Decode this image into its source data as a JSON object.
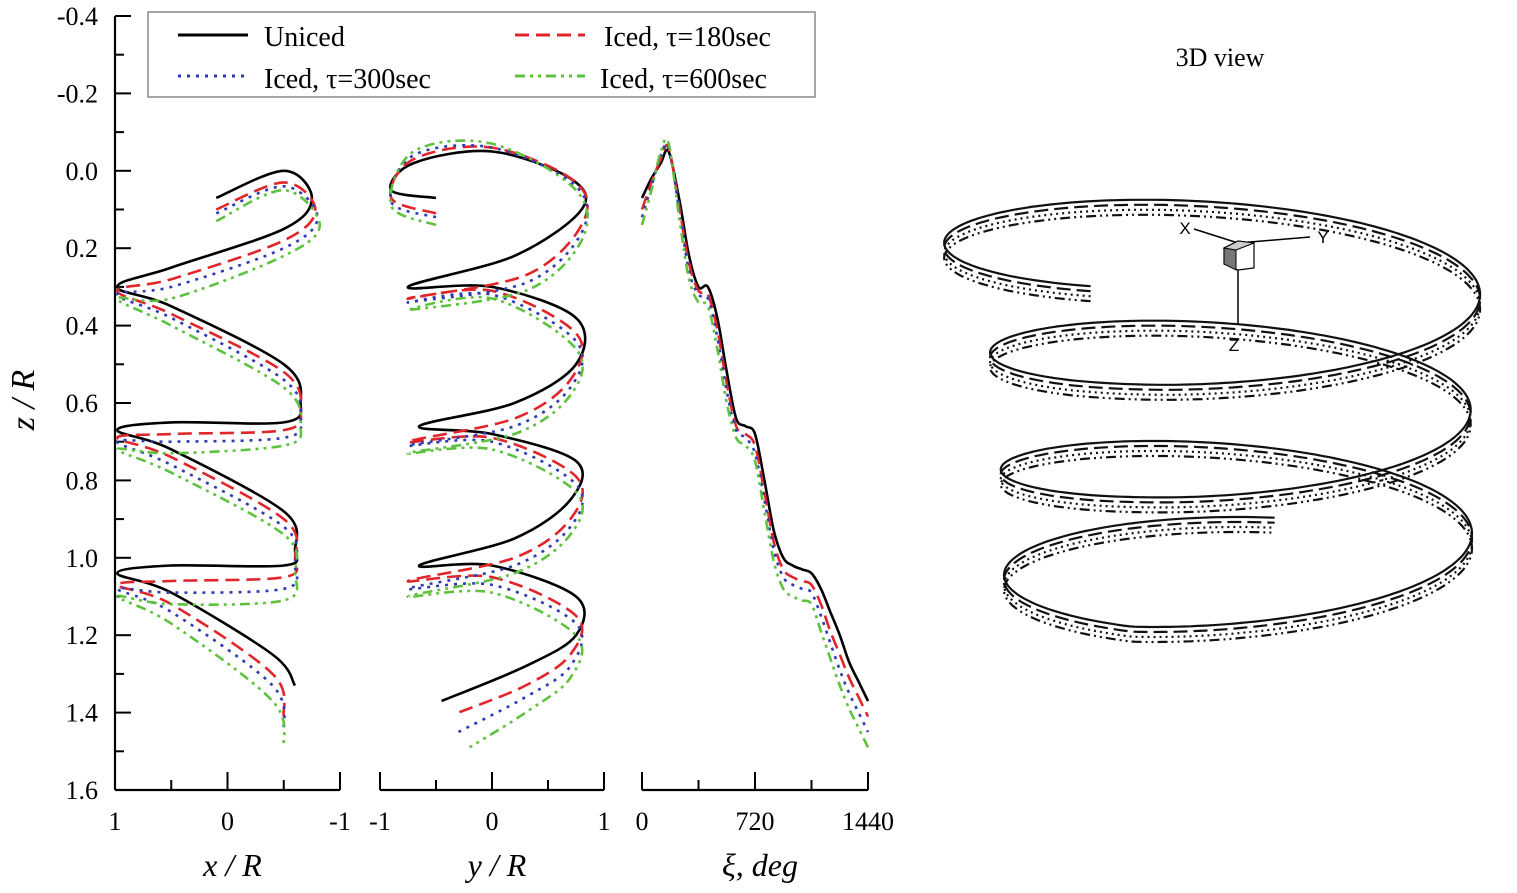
{
  "chart_data": [
    {
      "type": "line",
      "panel": "x-panel",
      "title": "",
      "ylabel": "z / R",
      "xlabel": "x / R",
      "xlim": [
        1,
        -1
      ],
      "ylim": [
        -0.4,
        1.6
      ],
      "yticks": [
        "-0.4",
        "-0.2",
        "0.0",
        "0.2",
        "0.4",
        "0.6",
        "0.8",
        "1.0",
        "1.2",
        "1.4",
        "1.6"
      ],
      "xticks": [
        "1",
        "0",
        "-1"
      ],
      "series": [
        {
          "name": "Uniced",
          "x": [
            0.1,
            -0.5,
            -0.75,
            -0.5,
            0.5,
            0.98,
            0.5,
            -0.5,
            -0.65,
            -0.5,
            0.5,
            0.98,
            0.5,
            -0.5,
            -0.6,
            -0.5,
            0.5,
            0.98,
            0.5,
            -0.4,
            -0.6
          ],
          "z": [
            0.07,
            0.0,
            0.07,
            0.15,
            0.25,
            0.3,
            0.35,
            0.5,
            0.6,
            0.65,
            0.65,
            0.67,
            0.72,
            0.88,
            0.98,
            1.02,
            1.02,
            1.04,
            1.09,
            1.25,
            1.33
          ]
        },
        {
          "name": "Iced, τ=180sec",
          "x": [
            0.1,
            -0.5,
            -0.78,
            -0.5,
            0.5,
            0.98,
            0.5,
            -0.5,
            -0.65,
            -0.5,
            0.5,
            0.98,
            0.5,
            -0.5,
            -0.6,
            -0.5,
            0.5,
            0.98,
            0.5,
            -0.4,
            -0.5
          ],
          "z": [
            0.1,
            0.03,
            0.1,
            0.18,
            0.28,
            0.31,
            0.37,
            0.52,
            0.62,
            0.67,
            0.68,
            0.69,
            0.74,
            0.9,
            1.0,
            1.05,
            1.06,
            1.07,
            1.12,
            1.3,
            1.41
          ]
        },
        {
          "name": "Iced, τ=300sec",
          "x": [
            0.1,
            -0.5,
            -0.8,
            -0.5,
            0.5,
            0.98,
            0.5,
            -0.5,
            -0.65,
            -0.5,
            0.5,
            0.98,
            0.5,
            -0.5,
            -0.6,
            -0.5,
            0.5,
            0.98,
            0.5,
            -0.4,
            -0.5
          ],
          "z": [
            0.11,
            0.04,
            0.12,
            0.2,
            0.3,
            0.32,
            0.38,
            0.54,
            0.64,
            0.69,
            0.7,
            0.7,
            0.76,
            0.92,
            1.02,
            1.08,
            1.09,
            1.08,
            1.14,
            1.33,
            1.45
          ]
        },
        {
          "name": "Iced, τ=600sec",
          "x": [
            0.1,
            -0.5,
            -0.82,
            -0.5,
            0.5,
            0.98,
            0.5,
            -0.5,
            -0.65,
            -0.5,
            0.5,
            0.98,
            0.5,
            -0.5,
            -0.6,
            -0.5,
            0.5,
            0.98,
            0.5,
            -0.4,
            -0.5
          ],
          "z": [
            0.13,
            0.05,
            0.14,
            0.22,
            0.33,
            0.33,
            0.4,
            0.56,
            0.66,
            0.71,
            0.73,
            0.72,
            0.78,
            0.94,
            1.04,
            1.11,
            1.12,
            1.1,
            1.17,
            1.37,
            1.49
          ]
        }
      ]
    },
    {
      "type": "line",
      "panel": "y-panel",
      "xlabel": "y / R",
      "xlim": [
        -1,
        1
      ],
      "ylim": [
        -0.4,
        1.6
      ],
      "xticks": [
        "-1",
        "0",
        "1"
      ],
      "series": [
        {
          "name": "Uniced",
          "x": [
            -0.5,
            -0.9,
            -0.7,
            0.0,
            0.7,
            0.8,
            0.2,
            -0.75,
            0.0,
            0.75,
            0.75,
            0.2,
            -0.65,
            0.0,
            0.75,
            0.7,
            0.2,
            -0.65,
            0.0,
            0.75,
            0.75,
            0.3,
            -0.45
          ],
          "z": [
            0.07,
            0.05,
            -0.02,
            -0.05,
            0.02,
            0.1,
            0.22,
            0.3,
            0.3,
            0.38,
            0.5,
            0.6,
            0.66,
            0.68,
            0.75,
            0.85,
            0.95,
            1.02,
            1.02,
            1.1,
            1.2,
            1.28,
            1.37
          ]
        },
        {
          "name": "Iced, τ=180sec",
          "x": [
            -0.5,
            -0.9,
            -0.7,
            0.0,
            0.75,
            0.8,
            0.3,
            -0.75,
            0.0,
            0.75,
            0.7,
            0.2,
            -0.75,
            0.0,
            0.75,
            0.7,
            0.2,
            -0.75,
            0.0,
            0.75,
            0.7,
            0.3,
            -0.3
          ],
          "z": [
            0.11,
            0.07,
            -0.03,
            -0.06,
            0.03,
            0.14,
            0.27,
            0.33,
            0.31,
            0.42,
            0.54,
            0.64,
            0.7,
            0.69,
            0.79,
            0.9,
            1.0,
            1.06,
            1.05,
            1.15,
            1.25,
            1.33,
            1.4
          ]
        },
        {
          "name": "Iced, τ=300sec",
          "x": [
            -0.5,
            -0.9,
            -0.7,
            0.0,
            0.75,
            0.8,
            0.3,
            -0.75,
            0.0,
            0.75,
            0.7,
            0.2,
            -0.75,
            0.0,
            0.75,
            0.7,
            0.2,
            -0.75,
            0.0,
            0.75,
            0.7,
            0.3,
            -0.3
          ],
          "z": [
            0.12,
            0.08,
            -0.04,
            -0.06,
            0.04,
            0.16,
            0.29,
            0.34,
            0.32,
            0.44,
            0.56,
            0.66,
            0.71,
            0.7,
            0.81,
            0.92,
            1.02,
            1.08,
            1.07,
            1.17,
            1.28,
            1.36,
            1.45
          ]
        },
        {
          "name": "Iced, τ=600sec",
          "x": [
            -0.5,
            -0.9,
            -0.7,
            0.0,
            0.75,
            0.8,
            0.3,
            -0.75,
            0.0,
            0.75,
            0.7,
            0.2,
            -0.75,
            0.0,
            0.75,
            0.7,
            0.2,
            -0.75,
            0.0,
            0.75,
            0.7,
            0.3,
            -0.2
          ],
          "z": [
            0.14,
            0.09,
            -0.05,
            -0.07,
            0.05,
            0.18,
            0.31,
            0.36,
            0.33,
            0.46,
            0.58,
            0.68,
            0.73,
            0.72,
            0.83,
            0.94,
            1.04,
            1.1,
            1.09,
            1.2,
            1.31,
            1.4,
            1.49
          ]
        }
      ]
    },
    {
      "type": "line",
      "panel": "xi-panel",
      "xlabel": "ξ, deg",
      "xlim": [
        0,
        1440
      ],
      "ylim": [
        -0.4,
        1.6
      ],
      "xticks": [
        "0",
        "720",
        "1440"
      ],
      "series": [
        {
          "name": "Uniced",
          "x": [
            0,
            60,
            120,
            170,
            240,
            300,
            360,
            420,
            480,
            540,
            600,
            660,
            720,
            780,
            840,
            900,
            960,
            1020,
            1080,
            1140,
            1200,
            1260,
            1320,
            1380,
            1440
          ],
          "z": [
            0.07,
            0.02,
            -0.02,
            -0.05,
            0.08,
            0.22,
            0.3,
            0.3,
            0.38,
            0.52,
            0.64,
            0.66,
            0.68,
            0.8,
            0.93,
            1.0,
            1.02,
            1.03,
            1.04,
            1.08,
            1.14,
            1.2,
            1.27,
            1.32,
            1.37
          ]
        },
        {
          "name": "Iced, τ=180sec",
          "x": [
            0,
            60,
            120,
            170,
            240,
            300,
            360,
            420,
            480,
            540,
            600,
            660,
            720,
            780,
            840,
            900,
            960,
            1020,
            1080,
            1140,
            1200,
            1260,
            1320,
            1380,
            1440
          ],
          "z": [
            0.1,
            0.03,
            -0.03,
            -0.06,
            0.1,
            0.24,
            0.31,
            0.32,
            0.41,
            0.55,
            0.66,
            0.68,
            0.71,
            0.83,
            0.96,
            1.03,
            1.05,
            1.06,
            1.07,
            1.12,
            1.19,
            1.25,
            1.31,
            1.36,
            1.41
          ]
        },
        {
          "name": "Iced, τ=300sec",
          "x": [
            0,
            60,
            120,
            170,
            240,
            300,
            360,
            420,
            480,
            540,
            600,
            660,
            720,
            780,
            840,
            900,
            960,
            1020,
            1080,
            1140,
            1200,
            1260,
            1320,
            1380,
            1440
          ],
          "z": [
            0.12,
            0.04,
            -0.04,
            -0.06,
            0.11,
            0.26,
            0.32,
            0.33,
            0.43,
            0.57,
            0.67,
            0.69,
            0.73,
            0.85,
            0.98,
            1.05,
            1.07,
            1.08,
            1.09,
            1.15,
            1.22,
            1.29,
            1.35,
            1.4,
            1.45
          ]
        },
        {
          "name": "Iced, τ=600sec",
          "x": [
            0,
            60,
            120,
            170,
            240,
            300,
            360,
            420,
            480,
            540,
            600,
            660,
            720,
            780,
            840,
            900,
            960,
            1020,
            1080,
            1140,
            1200,
            1260,
            1320,
            1380,
            1440
          ],
          "z": [
            0.14,
            0.05,
            -0.05,
            -0.07,
            0.13,
            0.28,
            0.34,
            0.35,
            0.46,
            0.6,
            0.69,
            0.71,
            0.75,
            0.88,
            1.01,
            1.08,
            1.1,
            1.11,
            1.12,
            1.19,
            1.26,
            1.33,
            1.39,
            1.44,
            1.49
          ]
        }
      ]
    }
  ],
  "legend": {
    "entries": [
      {
        "label": "Uniced",
        "color": "#000000",
        "dash": "solid"
      },
      {
        "label": "Iced,  τ=180sec",
        "color": "#e0252b",
        "dash": "dashed"
      },
      {
        "label": "Iced,  τ=300sec",
        "color": "#2f3bb5",
        "dash": "dotted"
      },
      {
        "label": "Iced,  τ=600sec",
        "color": "#5ec23f",
        "dash": "dash-dot-dot"
      }
    ]
  },
  "view3d": {
    "title": "3D view",
    "axes": {
      "x": "X",
      "y": "Y",
      "z": "Z"
    }
  }
}
